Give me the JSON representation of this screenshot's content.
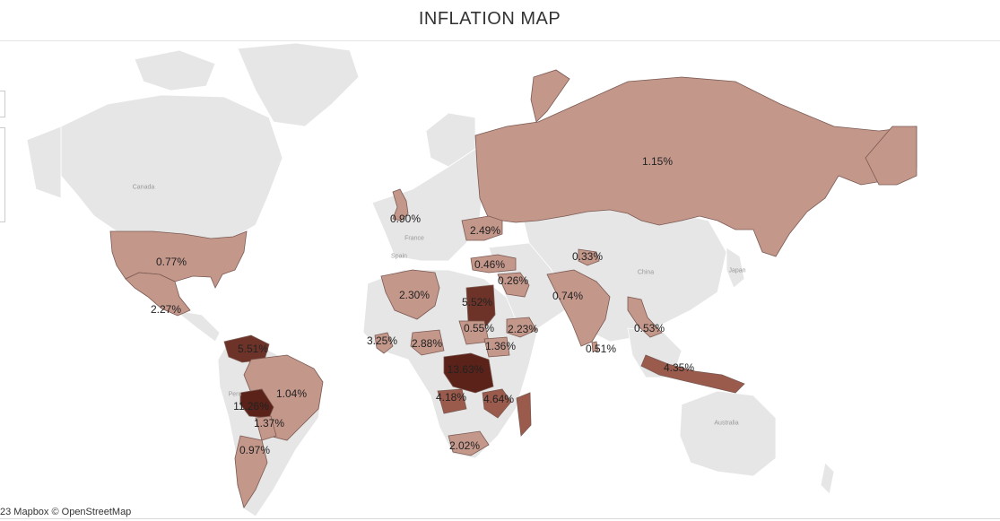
{
  "title": "INFLATION MAP",
  "attribution": "23 Mapbox © OpenStreetMap",
  "colors": {
    "land": "#e6e6e6",
    "land_border": "#ffffff",
    "low": "#c4978b",
    "medium": "#9a5a4c",
    "high": "#6e3328",
    "highest": "#5a2218",
    "country_border": "#7a5a52"
  },
  "base_labels": {
    "canada": "Canada",
    "france": "France",
    "spain": "Spain",
    "china": "China",
    "japan": "Japan",
    "peru": "Peru",
    "australia": "Australia"
  },
  "chart_data": {
    "type": "choropleth",
    "metric": "Inflation",
    "legend_shown": false,
    "regions": [
      {
        "label": "1.15%",
        "value": 1.15
      },
      {
        "label": "0.90%",
        "value": 0.9
      },
      {
        "label": "2.49%",
        "value": 2.49
      },
      {
        "label": "0.77%",
        "value": 0.77
      },
      {
        "label": "2.27%",
        "value": 2.27
      },
      {
        "label": "0.46%",
        "value": 0.46
      },
      {
        "label": "0.33%",
        "value": 0.33
      },
      {
        "label": "0.26%",
        "value": 0.26
      },
      {
        "label": "2.30%",
        "value": 2.3
      },
      {
        "label": "5.52%",
        "value": 5.52
      },
      {
        "label": "0.74%",
        "value": 0.74
      },
      {
        "label": "0.55%",
        "value": 0.55
      },
      {
        "label": "2.23%",
        "value": 2.23
      },
      {
        "label": "0.53%",
        "value": 0.53
      },
      {
        "label": "3.25%",
        "value": 3.25
      },
      {
        "label": "2.88%",
        "value": 2.88
      },
      {
        "label": "1.36%",
        "value": 1.36
      },
      {
        "label": "0.51%",
        "value": 0.51
      },
      {
        "label": "5.51%",
        "value": 5.51
      },
      {
        "label": "13.63%",
        "value": 13.63
      },
      {
        "label": "4.35%",
        "value": 4.35
      },
      {
        "label": "1.04%",
        "value": 1.04
      },
      {
        "label": "11.26%",
        "value": 11.26
      },
      {
        "label": "4.18%",
        "value": 4.18
      },
      {
        "label": "4.64%",
        "value": 4.64
      },
      {
        "label": "1.37%",
        "value": 1.37
      },
      {
        "label": "2.02%",
        "value": 2.02
      },
      {
        "label": "0.97%",
        "value": 0.97
      }
    ]
  }
}
